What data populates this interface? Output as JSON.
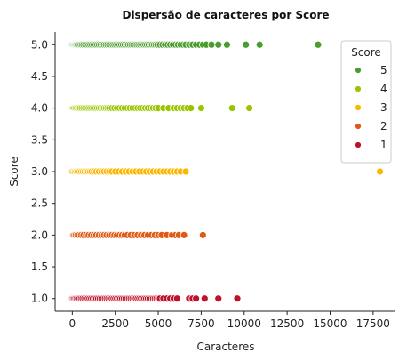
{
  "chart_data": {
    "type": "scatter",
    "title": "Dispersão de caracteres por Score",
    "xlabel": "Caracteres",
    "ylabel": "Score",
    "xlim": [
      -1000,
      18800
    ],
    "ylim": [
      0.8,
      5.2
    ],
    "xticks": [
      0,
      2500,
      5000,
      7500,
      10000,
      12500,
      15000,
      17500
    ],
    "yticks": [
      1.0,
      1.5,
      2.0,
      2.5,
      3.0,
      3.5,
      4.0,
      4.5,
      5.0
    ],
    "grid": false,
    "legend": {
      "title": "Score",
      "placement": "top-right",
      "entries": [
        "5",
        "4",
        "3",
        "2",
        "1"
      ]
    },
    "colors": {
      "5": "#4a9c2e",
      "4": "#99c400",
      "3": "#fbb700",
      "2": "#e05a14",
      "1": "#c0102a"
    },
    "series": [
      {
        "name": "5",
        "y": 5.0,
        "x": [
          0,
          50,
          100,
          150,
          200,
          260,
          320,
          400,
          480,
          560,
          650,
          750,
          850,
          950,
          1050,
          1150,
          1250,
          1350,
          1450,
          1550,
          1650,
          1750,
          1850,
          1950,
          2050,
          2150,
          2250,
          2350,
          2450,
          2550,
          2650,
          2750,
          2850,
          2950,
          3050,
          3150,
          3250,
          3350,
          3450,
          3550,
          3650,
          3750,
          3850,
          3950,
          4050,
          4150,
          4250,
          4350,
          4450,
          4550,
          4650,
          4750,
          4850,
          4950,
          5100,
          5250,
          5400,
          5550,
          5700,
          5850,
          6000,
          6150,
          6300,
          6450,
          6600,
          6800,
          7000,
          7200,
          7400,
          7600,
          7800,
          8100,
          8500,
          9000,
          10100,
          10900,
          14300
        ]
      },
      {
        "name": "4",
        "y": 4.0,
        "x": [
          0,
          60,
          120,
          200,
          280,
          360,
          450,
          550,
          650,
          750,
          850,
          950,
          1050,
          1150,
          1250,
          1350,
          1450,
          1550,
          1650,
          1750,
          1850,
          1950,
          2050,
          2150,
          2300,
          2450,
          2600,
          2750,
          2900,
          3050,
          3200,
          3350,
          3500,
          3650,
          3800,
          3950,
          4100,
          4250,
          4400,
          4550,
          4700,
          4850,
          5000,
          5300,
          5600,
          5900,
          6100,
          6300,
          6500,
          6700,
          6900,
          7500,
          9300,
          10300
        ]
      },
      {
        "name": "3",
        "y": 3.0,
        "x": [
          0,
          80,
          160,
          240,
          320,
          420,
          520,
          620,
          720,
          820,
          920,
          1020,
          1120,
          1250,
          1400,
          1550,
          1700,
          1850,
          2000,
          2150,
          2300,
          2500,
          2700,
          2900,
          3100,
          3300,
          3500,
          3700,
          3900,
          4100,
          4300,
          4500,
          4700,
          4900,
          5100,
          5300,
          5500,
          5700,
          5900,
          6100,
          6300,
          6600,
          17900
        ]
      },
      {
        "name": "2",
        "y": 2.0,
        "x": [
          50,
          120,
          200,
          300,
          400,
          520,
          650,
          800,
          950,
          1100,
          1250,
          1400,
          1550,
          1700,
          1850,
          2000,
          2150,
          2300,
          2450,
          2600,
          2750,
          2900,
          3050,
          3200,
          3400,
          3600,
          3800,
          4000,
          4200,
          4400,
          4600,
          4800,
          5000,
          5200,
          5500,
          5800,
          6000,
          6200,
          6500,
          7600
        ]
      },
      {
        "name": "1",
        "y": 1.0,
        "x": [
          0,
          60,
          120,
          190,
          260,
          340,
          420,
          510,
          600,
          700,
          800,
          900,
          1000,
          1100,
          1200,
          1300,
          1400,
          1500,
          1600,
          1700,
          1800,
          1900,
          2000,
          2100,
          2200,
          2300,
          2400,
          2500,
          2600,
          2700,
          2800,
          2900,
          3000,
          3100,
          3200,
          3300,
          3400,
          3500,
          3600,
          3700,
          3800,
          3900,
          4000,
          4100,
          4200,
          4300,
          4400,
          4500,
          4600,
          4700,
          4800,
          4900,
          5000,
          5100,
          5300,
          5500,
          5700,
          5900,
          6100,
          6800,
          7000,
          7200,
          7700,
          8500,
          9600
        ]
      }
    ]
  }
}
